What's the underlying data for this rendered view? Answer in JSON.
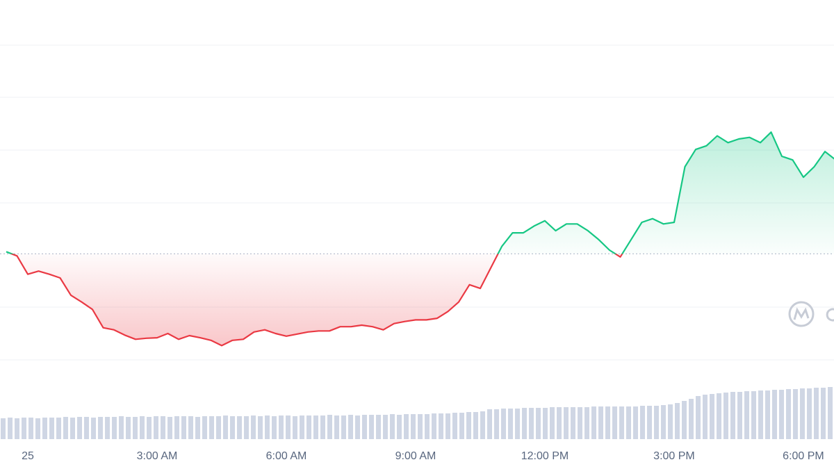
{
  "chart_data": {
    "type": "line",
    "baseline": 3.03,
    "up_color": "#16c784",
    "down_color": "#ea3943",
    "xlim": [
      -0.645,
      18.71
    ],
    "ylim": [
      0,
      7.87
    ],
    "xticks": [
      {
        "value": 0,
        "label": "25"
      },
      {
        "value": 3,
        "label": "3:00 AM"
      },
      {
        "value": 6,
        "label": "6:00 AM"
      },
      {
        "value": 9,
        "label": "9:00 AM"
      },
      {
        "value": 12,
        "label": "12:00 PM"
      },
      {
        "value": 15,
        "label": "3:00 PM"
      },
      {
        "value": 18,
        "label": "6:00 PM"
      }
    ],
    "x": [
      -0.5,
      -0.25,
      0,
      0.25,
      0.5,
      0.75,
      1,
      1.25,
      1.5,
      1.75,
      2,
      2.25,
      2.5,
      2.75,
      3,
      3.25,
      3.5,
      3.75,
      4,
      4.25,
      4.5,
      4.75,
      5,
      5.25,
      5.5,
      5.75,
      6,
      6.25,
      6.5,
      6.75,
      7,
      7.25,
      7.5,
      7.75,
      8,
      8.25,
      8.5,
      8.75,
      9,
      9.25,
      9.5,
      9.75,
      10,
      10.25,
      10.5,
      10.75,
      11,
      11.25,
      11.5,
      11.75,
      12,
      12.25,
      12.5,
      12.75,
      13,
      13.25,
      13.5,
      13.75,
      14,
      14.25,
      14.5,
      14.75,
      15,
      15.25,
      15.5,
      15.75,
      16,
      16.25,
      16.5,
      16.75,
      17,
      17.25,
      17.5,
      17.75,
      18,
      18.25,
      18.5,
      18.75
    ],
    "values": [
      3.07,
      2.99,
      2.64,
      2.7,
      2.64,
      2.57,
      2.24,
      2.11,
      1.97,
      1.62,
      1.58,
      1.48,
      1.4,
      1.42,
      1.43,
      1.51,
      1.4,
      1.47,
      1.43,
      1.38,
      1.28,
      1.38,
      1.4,
      1.54,
      1.58,
      1.51,
      1.46,
      1.5,
      1.54,
      1.56,
      1.56,
      1.64,
      1.64,
      1.67,
      1.64,
      1.58,
      1.7,
      1.74,
      1.77,
      1.77,
      1.8,
      1.93,
      2.11,
      2.44,
      2.37,
      2.77,
      3.17,
      3.43,
      3.43,
      3.56,
      3.66,
      3.47,
      3.6,
      3.6,
      3.47,
      3.3,
      3.1,
      2.97,
      3.3,
      3.63,
      3.7,
      3.6,
      3.63,
      4.69,
      5.02,
      5.09,
      5.28,
      5.15,
      5.22,
      5.25,
      5.15,
      5.35,
      4.89,
      4.82,
      4.49,
      4.69,
      4.98,
      4.82
    ],
    "volume": {
      "color": "#cfd6e4",
      "y2lim": [
        0,
        100
      ],
      "values": [
        30,
        31,
        30,
        31,
        31,
        30,
        31,
        31,
        31,
        32,
        31,
        32,
        32,
        31,
        32,
        32,
        32,
        33,
        32,
        32,
        33,
        32,
        33,
        33,
        32,
        33,
        33,
        33,
        32,
        33,
        33,
        33,
        34,
        33,
        33,
        33,
        34,
        33,
        34,
        33,
        34,
        34,
        33,
        34,
        34,
        34,
        34,
        35,
        34,
        34,
        35,
        34,
        35,
        35,
        35,
        35,
        36,
        35,
        36,
        36,
        36,
        36,
        37,
        37,
        37,
        38,
        38,
        39,
        39,
        40,
        43,
        43,
        44,
        44,
        44,
        45,
        45,
        45,
        45,
        46,
        46,
        46,
        46,
        46,
        46,
        47,
        47,
        47,
        47,
        47,
        47,
        47,
        48,
        48,
        48,
        49,
        50,
        52,
        55,
        58,
        62,
        64,
        65,
        66,
        67,
        68,
        68,
        69,
        69,
        70,
        70,
        71,
        71,
        72,
        72,
        73,
        73,
        74,
        74,
        75
      ]
    }
  }
}
